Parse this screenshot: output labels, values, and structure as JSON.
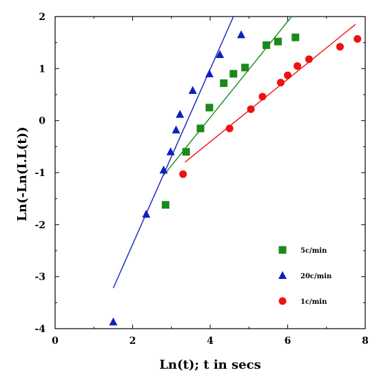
{
  "chart_data": {
    "type": "scatter",
    "xlabel": "Ln(t); t in secs",
    "ylabel": "Ln(-Ln(I.L(t))",
    "xlim": [
      0,
      8
    ],
    "ylim": [
      -4,
      2
    ],
    "x_ticks": [
      "0",
      "2",
      "4",
      "6",
      "8"
    ],
    "y_ticks": [
      "-4",
      "-3",
      "-2",
      "-1",
      "0",
      "1",
      "2"
    ],
    "grid": false,
    "legend_position": "bottom-right",
    "series": [
      {
        "name": "5c/min",
        "marker": "square",
        "color": "#1a8a1a",
        "points": [
          [
            2.85,
            -1.62
          ],
          [
            3.38,
            -0.6
          ],
          [
            3.75,
            -0.15
          ],
          [
            3.98,
            0.25
          ],
          [
            4.35,
            0.72
          ],
          [
            4.6,
            0.9
          ],
          [
            4.9,
            1.02
          ],
          [
            5.45,
            1.45
          ],
          [
            5.75,
            1.52
          ],
          [
            6.2,
            1.6
          ]
        ],
        "fit": [
          [
            2.8,
            -1.05
          ],
          [
            6.1,
            2.0
          ]
        ]
      },
      {
        "name": "20c/min",
        "marker": "triangle",
        "color": "#1020c0",
        "points": [
          [
            1.5,
            -3.87
          ],
          [
            2.35,
            -1.8
          ],
          [
            2.8,
            -0.95
          ],
          [
            2.98,
            -0.6
          ],
          [
            3.12,
            -0.18
          ],
          [
            3.22,
            0.12
          ],
          [
            3.55,
            0.58
          ],
          [
            3.98,
            0.9
          ],
          [
            4.25,
            1.27
          ],
          [
            4.8,
            1.65
          ]
        ],
        "fit": [
          [
            1.5,
            -3.22
          ],
          [
            4.6,
            2.0
          ]
        ]
      },
      {
        "name": "1c/min",
        "marker": "circle",
        "color": "#ee1111",
        "points": [
          [
            3.3,
            -1.03
          ],
          [
            4.5,
            -0.15
          ],
          [
            5.05,
            0.22
          ],
          [
            5.35,
            0.46
          ],
          [
            5.82,
            0.73
          ],
          [
            6.0,
            0.87
          ],
          [
            6.25,
            1.05
          ],
          [
            6.55,
            1.18
          ],
          [
            7.35,
            1.42
          ],
          [
            7.8,
            1.57
          ]
        ],
        "fit": [
          [
            3.35,
            -0.8
          ],
          [
            7.75,
            1.85
          ]
        ]
      }
    ]
  }
}
